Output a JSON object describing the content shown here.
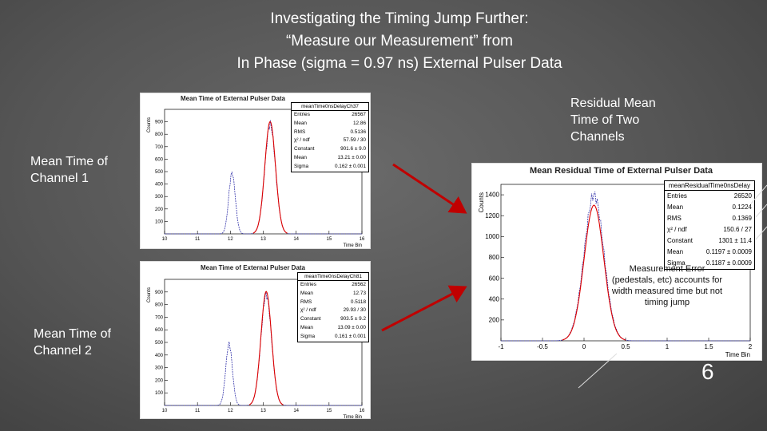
{
  "slide": {
    "title_lines": [
      "Investigating the Timing Jump Further:",
      "“Measure our Measurement” from",
      "In Phase (sigma = 0.97 ns) External Pulser Data"
    ],
    "label_ch1_lines": [
      "Mean Time of",
      "Channel 1"
    ],
    "label_ch2_lines": [
      "Mean Time of",
      "Channel 2"
    ],
    "label_residual_lines": [
      "Residual Mean",
      "Time of Two",
      "Channels"
    ],
    "note_lines": [
      "Measurement Error",
      "(pedestals, etc) accounts for",
      "width measured time but not",
      "timing jump"
    ],
    "page_number": "6",
    "arrow_color": "#c00000"
  },
  "chart_data": [
    {
      "type": "histogram",
      "title": "Mean Time of External Pulser Data",
      "xlabel": "Time Bin",
      "ylabel": "Counts",
      "xlim": [
        10,
        16
      ],
      "ylim": [
        0,
        1000
      ],
      "x_ticks": [
        "10",
        "11",
        "12",
        "13",
        "14",
        "15",
        "16"
      ],
      "y_ticks": [
        "100",
        "200",
        "300",
        "400",
        "500",
        "600",
        "700",
        "800",
        "900"
      ],
      "peaks": [
        {
          "mean": 12.05,
          "sigma": 0.1,
          "height": 490
        },
        {
          "mean": 13.21,
          "sigma": 0.162,
          "height": 880
        }
      ],
      "fit": {
        "mean": 13.21,
        "sigma": 0.162,
        "height": 901.6,
        "color": "#dd0000"
      },
      "histogram_color": "#3333aa",
      "stats": {
        "name": "meanTime0nsDelayCh37",
        "rows": [
          [
            "Entries",
            "26567"
          ],
          [
            "Mean",
            "12.86"
          ],
          [
            "RMS",
            "0.5136"
          ],
          [
            "χ² / ndf",
            "57.59 / 30"
          ],
          [
            "Constant",
            "901.6 ± 9.0"
          ],
          [
            "Mean",
            "13.21 ± 0.00"
          ],
          [
            "Sigma",
            "0.162 ± 0.001"
          ]
        ]
      }
    },
    {
      "type": "histogram",
      "title": "Mean Time of External Pulser Data",
      "xlabel": "Time Bin",
      "ylabel": "Counts",
      "xlim": [
        10,
        16
      ],
      "ylim": [
        0,
        1000
      ],
      "x_ticks": [
        "10",
        "11",
        "12",
        "13",
        "14",
        "15",
        "16"
      ],
      "y_ticks": [
        "100",
        "200",
        "300",
        "400",
        "500",
        "600",
        "700",
        "800",
        "900"
      ],
      "peaks": [
        {
          "mean": 11.96,
          "sigma": 0.1,
          "height": 490
        },
        {
          "mean": 13.09,
          "sigma": 0.161,
          "height": 880
        }
      ],
      "fit": {
        "mean": 13.09,
        "sigma": 0.161,
        "height": 903.5,
        "color": "#dd0000"
      },
      "histogram_color": "#3333aa",
      "stats": {
        "name": "meanTime0nsDelayCh81",
        "rows": [
          [
            "Entries",
            "26562"
          ],
          [
            "Mean",
            "12.73"
          ],
          [
            "RMS",
            "0.5118"
          ],
          [
            "χ² / ndf",
            "29.93 / 30"
          ],
          [
            "Constant",
            "903.5 ± 9.2"
          ],
          [
            "Mean",
            "13.09 ± 0.00"
          ],
          [
            "Sigma",
            "0.161 ± 0.001"
          ]
        ]
      }
    },
    {
      "type": "histogram",
      "title": "Mean Residual Time of External Pulser Data",
      "xlabel": "Time Bin",
      "ylabel": "Counts",
      "xlim": [
        -1,
        2
      ],
      "ylim": [
        0,
        1500
      ],
      "x_ticks": [
        "-1",
        "-0.5",
        "0",
        "0.5",
        "1",
        "1.5",
        "2"
      ],
      "y_ticks": [
        "200",
        "400",
        "600",
        "800",
        "1000",
        "1200",
        "1400"
      ],
      "peaks": [
        {
          "mean": 0.12,
          "sigma": 0.119,
          "height": 1400
        }
      ],
      "fit": {
        "mean": 0.1197,
        "sigma": 0.1187,
        "height": 1301,
        "color": "#dd0000"
      },
      "histogram_color": "#3333aa",
      "stats": {
        "name": "meanResidualTime0nsDelay",
        "rows": [
          [
            "Entries",
            "26520"
          ],
          [
            "Mean",
            "0.1224"
          ],
          [
            "RMS",
            "0.1369"
          ],
          [
            "χ² / ndf",
            "150.6 / 27"
          ],
          [
            "Constant",
            "1301 ± 11.4"
          ],
          [
            "Mean",
            "0.1197 ± 0.0009"
          ],
          [
            "Sigma",
            "0.1187 ± 0.0009"
          ]
        ]
      }
    }
  ]
}
